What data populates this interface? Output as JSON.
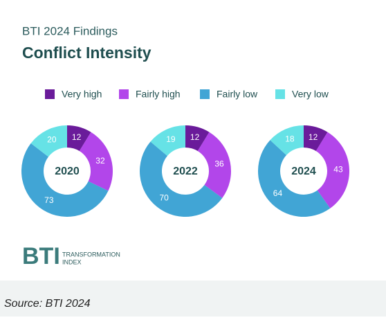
{
  "subtitle": "BTI 2024 Findings",
  "logo": {
    "mark": "BTI",
    "line1": "TRANSFORMATION",
    "line2": "INDEX"
  },
  "source": "Source: BTI 2024",
  "chart_data": {
    "type": "donut",
    "title": "Conflict Intensity",
    "categories": [
      "Very high",
      "Fairly high",
      "Fairly low",
      "Very low"
    ],
    "colors": [
      "#6a1b9a",
      "#b246ea",
      "#41a5d5",
      "#66e2e6"
    ],
    "series": [
      {
        "name": "2020",
        "values": [
          12,
          32,
          73,
          20
        ]
      },
      {
        "name": "2022",
        "values": [
          12,
          36,
          70,
          19
        ]
      },
      {
        "name": "2024",
        "values": [
          12,
          43,
          64,
          18
        ]
      }
    ]
  }
}
